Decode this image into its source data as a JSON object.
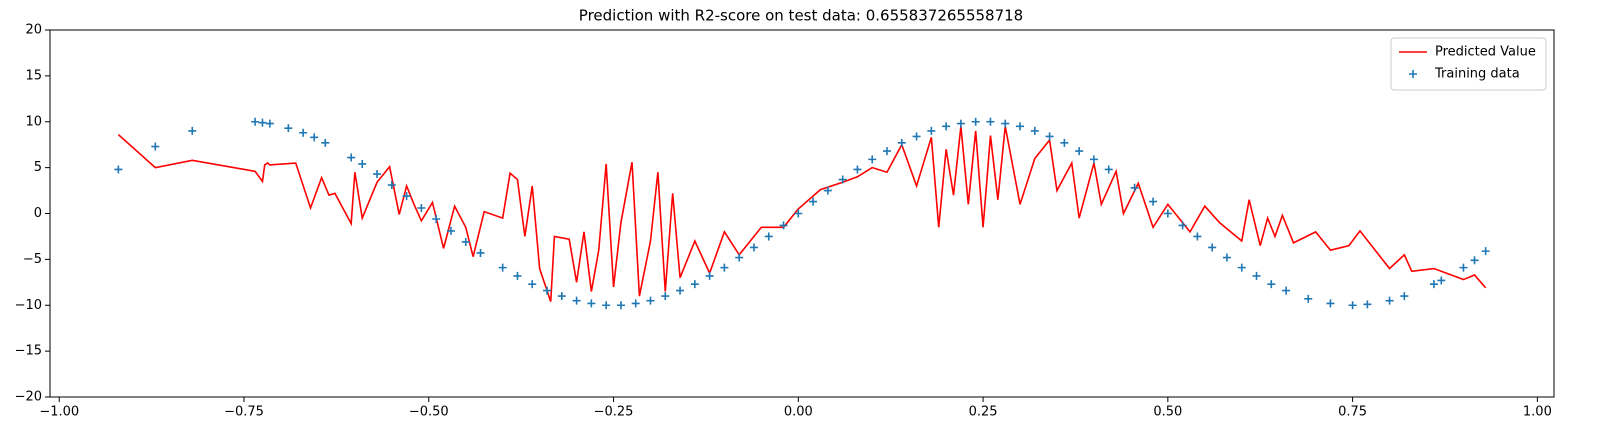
{
  "chart_data": {
    "type": "line-scatter",
    "title": "Prediction with R2-score on test data: 0.655837265558718",
    "xlim": [
      -1.0125,
      1.0225
    ],
    "ylim": [
      -20,
      20
    ],
    "xticks": [
      {
        "value": -1,
        "label": "−1.00"
      },
      {
        "value": -0.75,
        "label": "−0.75"
      },
      {
        "value": -0.5,
        "label": "−0.50"
      },
      {
        "value": -0.25,
        "label": "−0.25"
      },
      {
        "value": 0,
        "label": "0.00"
      },
      {
        "value": 0.25,
        "label": "0.25"
      },
      {
        "value": 0.5,
        "label": "0.50"
      },
      {
        "value": 0.75,
        "label": "0.75"
      },
      {
        "value": 1,
        "label": "1.00"
      }
    ],
    "yticks": [
      {
        "value": -20,
        "label": "−20"
      },
      {
        "value": -15,
        "label": "−15"
      },
      {
        "value": -10,
        "label": "−10"
      },
      {
        "value": -5,
        "label": "−5"
      },
      0,
      5,
      10,
      15,
      20
    ],
    "legend": "upper right",
    "series": [
      {
        "name": "Predicted Value",
        "type": "line",
        "color": "#ff0000",
        "x": [
          -0.92,
          -0.87,
          -0.82,
          -0.735,
          -0.725,
          -0.722,
          -0.718,
          -0.715,
          -0.68,
          -0.66,
          -0.645,
          -0.635,
          -0.627,
          -0.605,
          -0.6,
          -0.59,
          -0.57,
          -0.553,
          -0.54,
          -0.53,
          -0.52,
          -0.51,
          -0.495,
          -0.48,
          -0.465,
          -0.45,
          -0.44,
          -0.425,
          -0.4,
          -0.39,
          -0.38,
          -0.37,
          -0.36,
          -0.35,
          -0.335,
          -0.33,
          -0.31,
          -0.3,
          -0.29,
          -0.28,
          -0.27,
          -0.26,
          -0.25,
          -0.24,
          -0.225,
          -0.215,
          -0.2,
          -0.19,
          -0.18,
          -0.17,
          -0.16,
          -0.14,
          -0.12,
          -0.1,
          -0.08,
          -0.05,
          -0.02,
          0,
          0.03,
          0.06,
          0.08,
          0.1,
          0.12,
          0.14,
          0.16,
          0.18,
          0.19,
          0.2,
          0.21,
          0.22,
          0.23,
          0.24,
          0.25,
          0.26,
          0.27,
          0.28,
          0.3,
          0.32,
          0.34,
          0.35,
          0.37,
          0.38,
          0.4,
          0.41,
          0.43,
          0.44,
          0.46,
          0.48,
          0.5,
          0.53,
          0.55,
          0.57,
          0.6,
          0.61,
          0.625,
          0.635,
          0.645,
          0.655,
          0.67,
          0.7,
          0.72,
          0.745,
          0.76,
          0.8,
          0.82,
          0.83,
          0.86,
          0.9,
          0.915,
          0.93
        ],
        "values": [
          8.6,
          5.0,
          5.8,
          4.6,
          3.5,
          5.3,
          5.5,
          5.3,
          5.5,
          0.6,
          3.9,
          2.0,
          2.2,
          -1.1,
          4.5,
          -0.5,
          3.4,
          5.1,
          -0.1,
          3.0,
          1.0,
          -0.8,
          1.2,
          -3.8,
          0.8,
          -1.5,
          -4.7,
          0.2,
          -0.5,
          4.4,
          3.7,
          -2.5,
          3.0,
          -6.0,
          -9.6,
          -2.5,
          -2.8,
          -7.5,
          -2.0,
          -8.5,
          -4.0,
          5.4,
          -8.0,
          -1.0,
          5.6,
          -9.0,
          -3.0,
          4.5,
          -8.5,
          2.2,
          -7.0,
          -3.0,
          -6.5,
          -2.0,
          -4.5,
          -1.5,
          -1.5,
          0.5,
          2.6,
          3.4,
          4.0,
          5.0,
          4.5,
          7.5,
          3.0,
          8.3,
          -1.5,
          7.0,
          2.0,
          9.5,
          1.0,
          9.0,
          -1.5,
          8.5,
          1.5,
          9.5,
          1.0,
          6.0,
          8.0,
          2.5,
          5.5,
          -0.5,
          5.5,
          1.0,
          4.6,
          0.0,
          3.3,
          -1.5,
          1.0,
          -2.0,
          0.8,
          -1.0,
          -3.0,
          1.5,
          -3.5,
          -0.5,
          -2.5,
          -0.2,
          -3.2,
          -2.0,
          -4.0,
          -3.5,
          -1.9,
          -6.0,
          -4.5,
          -6.3,
          -6.0,
          -7.2,
          -6.7,
          -8.1
        ]
      },
      {
        "name": "Training data",
        "type": "scatter",
        "color": "#1f77b4",
        "x": [
          -0.92,
          -0.87,
          -0.82,
          -0.735,
          -0.725,
          -0.715,
          -0.69,
          -0.67,
          -0.655,
          -0.64,
          -0.605,
          -0.59,
          -0.57,
          -0.55,
          -0.53,
          -0.51,
          -0.49,
          -0.47,
          -0.45,
          -0.43,
          -0.4,
          -0.38,
          -0.36,
          -0.34,
          -0.32,
          -0.3,
          -0.28,
          -0.26,
          -0.24,
          -0.22,
          -0.2,
          -0.18,
          -0.16,
          -0.14,
          -0.12,
          -0.1,
          -0.08,
          -0.06,
          -0.04,
          -0.02,
          0,
          0.02,
          0.04,
          0.06,
          0.08,
          0.1,
          0.12,
          0.14,
          0.16,
          0.18,
          0.2,
          0.22,
          0.24,
          0.26,
          0.28,
          0.3,
          0.32,
          0.34,
          0.36,
          0.38,
          0.4,
          0.42,
          0.455,
          0.48,
          0.5,
          0.52,
          0.54,
          0.56,
          0.58,
          0.6,
          0.62,
          0.64,
          0.66,
          0.69,
          0.72,
          0.75,
          0.77,
          0.8,
          0.82,
          0.86,
          0.87,
          0.9,
          0.915,
          0.93
        ],
        "values": [
          4.8,
          7.3,
          9.0,
          10.0,
          9.9,
          9.8,
          9.3,
          8.8,
          8.3,
          7.7,
          6.1,
          5.4,
          4.3,
          3.1,
          1.9,
          0.6,
          -0.6,
          -1.9,
          -3.1,
          -4.3,
          -5.9,
          -6.8,
          -7.7,
          -8.4,
          -9.0,
          -9.5,
          -9.8,
          -10.0,
          -10.0,
          -9.8,
          -9.5,
          -9.0,
          -8.4,
          -7.7,
          -6.8,
          -5.9,
          -4.8,
          -3.7,
          -2.5,
          -1.3,
          0,
          1.3,
          2.5,
          3.7,
          4.8,
          5.9,
          6.8,
          7.7,
          8.4,
          9.0,
          9.5,
          9.8,
          10.0,
          10.0,
          9.8,
          9.5,
          9.0,
          8.4,
          7.7,
          6.8,
          5.9,
          4.8,
          2.8,
          1.3,
          0,
          -1.3,
          -2.5,
          -3.7,
          -4.8,
          -5.9,
          -6.8,
          -7.7,
          -8.4,
          -9.3,
          -9.8,
          -10.0,
          -9.9,
          -9.5,
          -9.0,
          -7.7,
          -7.3,
          -5.9,
          -5.1,
          -4.1
        ]
      }
    ]
  }
}
